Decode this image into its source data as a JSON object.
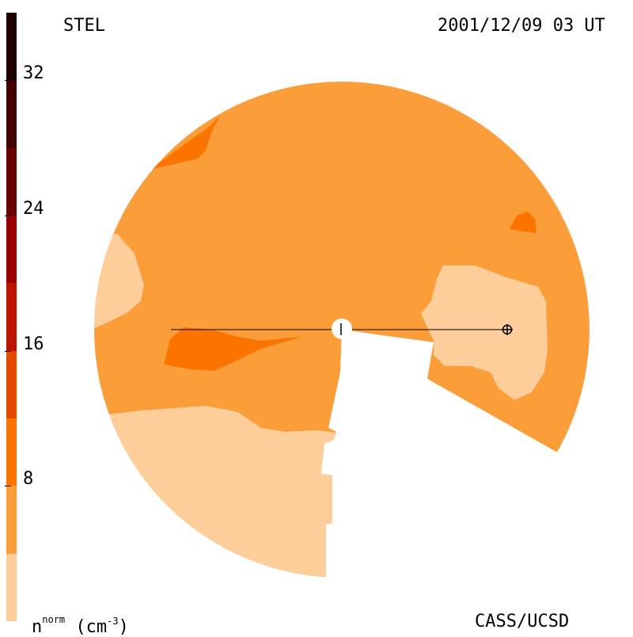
{
  "header": {
    "station": "STEL",
    "timestamp": "2001/12/09 03 UT"
  },
  "footer": {
    "credit": "CASS/UCSD"
  },
  "colorbar": {
    "label_main": "n",
    "label_sup": "norm",
    "label_unit_open": "(cm",
    "label_unit_sup": "-3",
    "label_unit_close": ")",
    "ticks": [
      "8",
      "16",
      "24",
      "32"
    ],
    "levels": [
      {
        "min": 0,
        "max": 4,
        "color": "#fdcd9a"
      },
      {
        "min": 4,
        "max": 8,
        "color": "#fb9e3a"
      },
      {
        "min": 8,
        "max": 12,
        "color": "#fb7400"
      },
      {
        "min": 12,
        "max": 16,
        "color": "#e14a00"
      },
      {
        "min": 16,
        "max": 20,
        "color": "#bb1500"
      },
      {
        "min": 20,
        "max": 24,
        "color": "#9a0000"
      },
      {
        "min": 24,
        "max": 28,
        "color": "#6b0000"
      },
      {
        "min": 28,
        "max": 32,
        "color": "#420000"
      },
      {
        "min": 32,
        "max": 36,
        "color": "#1e0000"
      }
    ]
  },
  "map": {
    "background_color": "#fb9e3a",
    "low_density_color": "#fdcd9a",
    "enhanced_color": "#fb7400",
    "sun_marker_color": "#ffffff",
    "line_color": "#000000"
  }
}
